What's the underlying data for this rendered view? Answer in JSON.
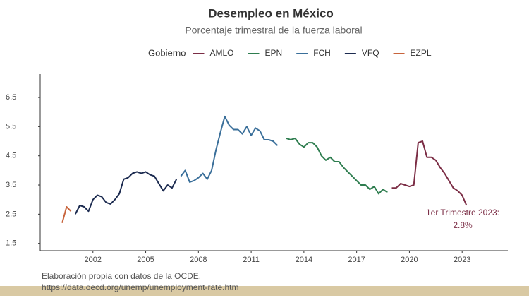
{
  "chart_data": {
    "type": "line",
    "title": "Desempleo en México",
    "subtitle": "Porcentaje trimestral de la fuerza laboral",
    "legend_title": "Gobierno",
    "xlim": [
      1999,
      2025.6
    ],
    "xticks": [
      2002,
      2005,
      2008,
      2011,
      2014,
      2017,
      2020,
      2023
    ],
    "ylim": [
      1.25,
      7.3
    ],
    "yticks": [
      1.5,
      2.5,
      3.5,
      4.5,
      5.5,
      6.5
    ],
    "grid": false,
    "series": [
      {
        "name": "AMLO",
        "color": "#7b2d45",
        "x": [
          2019,
          2019.25,
          2019.5,
          2019.75,
          2020,
          2020.25,
          2020.5,
          2020.75,
          2021,
          2021.25,
          2021.5,
          2021.75,
          2022,
          2022.25,
          2022.5,
          2022.75,
          2023,
          2023.25
        ],
        "values": [
          3.4,
          3.4,
          3.55,
          3.5,
          3.45,
          3.5,
          4.95,
          5.0,
          4.45,
          4.45,
          4.35,
          4.1,
          3.9,
          3.65,
          3.4,
          3.3,
          3.15,
          2.8
        ]
      },
      {
        "name": "EPN",
        "color": "#2e7d4f",
        "x": [
          2013,
          2013.25,
          2013.5,
          2013.75,
          2014,
          2014.25,
          2014.5,
          2014.75,
          2015,
          2015.25,
          2015.5,
          2015.75,
          2016,
          2016.25,
          2016.5,
          2016.75,
          2017,
          2017.25,
          2017.5,
          2017.75,
          2018,
          2018.25,
          2018.5,
          2018.75
        ],
        "values": [
          5.1,
          5.05,
          5.1,
          4.9,
          4.8,
          4.95,
          4.95,
          4.8,
          4.5,
          4.35,
          4.45,
          4.3,
          4.3,
          4.1,
          3.95,
          3.8,
          3.65,
          3.5,
          3.5,
          3.35,
          3.45,
          3.2,
          3.35,
          3.25
        ]
      },
      {
        "name": "FCH",
        "color": "#3a6f9a",
        "x": [
          2007,
          2007.25,
          2007.5,
          2007.75,
          2008,
          2008.25,
          2008.5,
          2008.75,
          2009,
          2009.25,
          2009.5,
          2009.75,
          2010,
          2010.25,
          2010.5,
          2010.75,
          2011,
          2011.25,
          2011.5,
          2011.75,
          2012,
          2012.25,
          2012.5
        ],
        "values": [
          3.8,
          4.0,
          3.6,
          3.65,
          3.75,
          3.9,
          3.7,
          4.0,
          4.7,
          5.3,
          5.85,
          5.55,
          5.4,
          5.4,
          5.25,
          5.5,
          5.2,
          5.45,
          5.35,
          5.05,
          5.05,
          5.0,
          4.85
        ]
      },
      {
        "name": "VFQ",
        "color": "#1c2b50",
        "x": [
          2001,
          2001.25,
          2001.5,
          2001.75,
          2002,
          2002.25,
          2002.5,
          2002.75,
          2003,
          2003.25,
          2003.5,
          2003.75,
          2004,
          2004.25,
          2004.5,
          2004.75,
          2005,
          2005.25,
          2005.5,
          2005.75,
          2006,
          2006.25,
          2006.5,
          2006.75
        ],
        "values": [
          2.5,
          2.8,
          2.75,
          2.6,
          3.0,
          3.15,
          3.1,
          2.9,
          2.85,
          3.0,
          3.2,
          3.7,
          3.75,
          3.9,
          3.95,
          3.9,
          3.95,
          3.85,
          3.8,
          3.55,
          3.3,
          3.5,
          3.4,
          3.7
        ]
      },
      {
        "name": "EZPL",
        "color": "#c8643c",
        "x": [
          2000.25,
          2000.5,
          2000.75
        ],
        "values": [
          2.2,
          2.75,
          2.6
        ]
      }
    ],
    "annotation": [
      "1er Trimestre 2023:",
      "2.8%"
    ],
    "source": [
      "Elaboración propia con datos de la OCDE.",
      "https://data.oecd.org/unemp/unemployment-rate.htm"
    ]
  }
}
